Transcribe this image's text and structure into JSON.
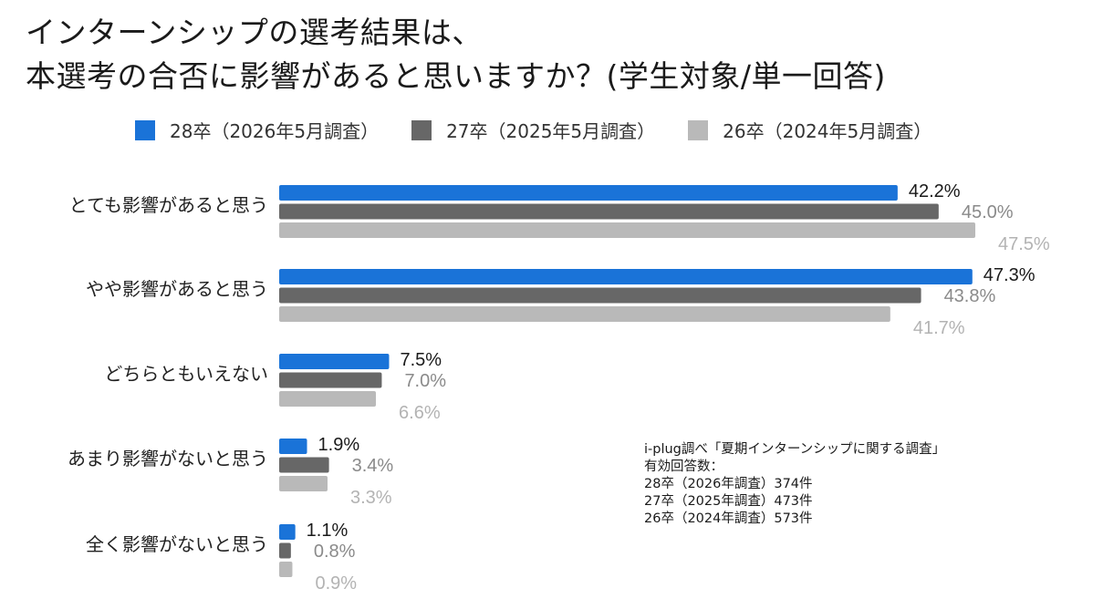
{
  "title_lines": [
    "インターンシップの選考結果は、",
    "本選考の合否に影響があると思いますか？(学生対象/単一回答)"
  ],
  "colors": {
    "series1": "#1a73d8",
    "series2": "#676767",
    "series3": "#b9b9b9",
    "label_dark": "#1a1a1a",
    "label_gray": "#8a8a8a",
    "label_light": "#b3b3b3"
  },
  "source": {
    "line1": "i-plug調べ「夏期インターンシップに関する調査」",
    "line2": "有効回答数：",
    "line3": "28卒（2026年調査）374件",
    "line4": "27卒（2025年調査）473件",
    "line5": "26卒（2024年調査）573件"
  },
  "chart_data": {
    "type": "bar",
    "orientation": "horizontal",
    "categories": [
      "とても影響があると思う",
      "やや影響があると思う",
      "どちらともいえない",
      "あまり影響がないと思う",
      "全く影響がないと思う"
    ],
    "series": [
      {
        "name": "28卒（2026年5月調査）",
        "values": [
          42.2,
          47.3,
          7.5,
          1.9,
          1.1
        ],
        "labels": [
          "42.2%",
          "47.3%",
          "7.5%",
          "1.9%",
          "1.1%"
        ]
      },
      {
        "name": "27卒（2025年5月調査）",
        "values": [
          45.0,
          43.8,
          7.0,
          3.4,
          0.8
        ],
        "labels": [
          "45.0%",
          "43.8%",
          "7.0%",
          "3.4%",
          "0.8%"
        ]
      },
      {
        "name": "26卒（2024年5月調査）",
        "values": [
          47.5,
          41.7,
          6.6,
          3.3,
          0.9
        ],
        "labels": [
          "47.5%",
          "41.7%",
          "6.6%",
          "3.3%",
          "0.9%"
        ]
      }
    ],
    "xlim": [
      0,
      47.5
    ],
    "legend_position": "top",
    "grid": false
  }
}
